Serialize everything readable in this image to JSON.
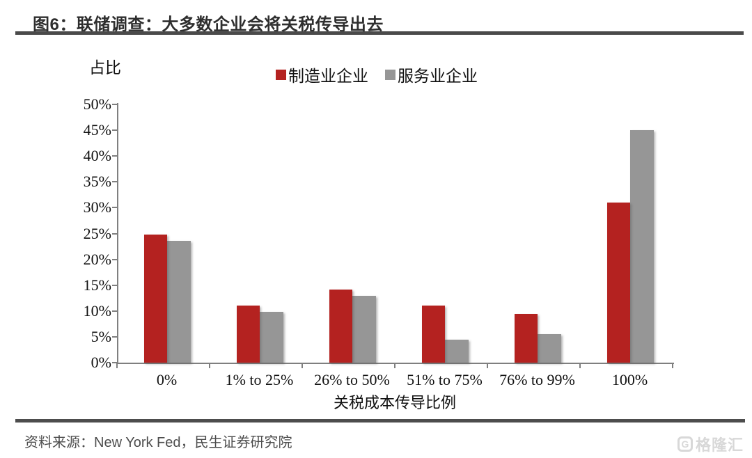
{
  "page": {
    "title": "图6：联储调查：大多数企业会将关税传导出去",
    "source": "资料来源：New York Fed，民生证券研究院",
    "watermark": {
      "icon": "G",
      "text": "格隆汇"
    }
  },
  "chart_data": {
    "type": "bar",
    "title": "联储调查：大多数企业会将关税传导出去",
    "ylabel": "占比",
    "xlabel": "关税成本传导比例",
    "categories": [
      "0%",
      "1% to 25%",
      "26% to 50%",
      "51% to 75%",
      "76% to 99%",
      "100%"
    ],
    "series": [
      {
        "name": "制造业企业",
        "color": "#b42220",
        "values": [
          24.8,
          11.0,
          14.2,
          11.0,
          9.5,
          31.0
        ]
      },
      {
        "name": "服务业企业",
        "color": "#969696",
        "values": [
          23.6,
          9.8,
          13.0,
          4.5,
          5.5,
          45.0
        ]
      }
    ],
    "ylim": [
      0,
      50
    ],
    "ytick_step": 5,
    "ytick_suffix": "%",
    "legend_position": "top-center",
    "grid": false,
    "axis_color": "#7f7f7f"
  }
}
